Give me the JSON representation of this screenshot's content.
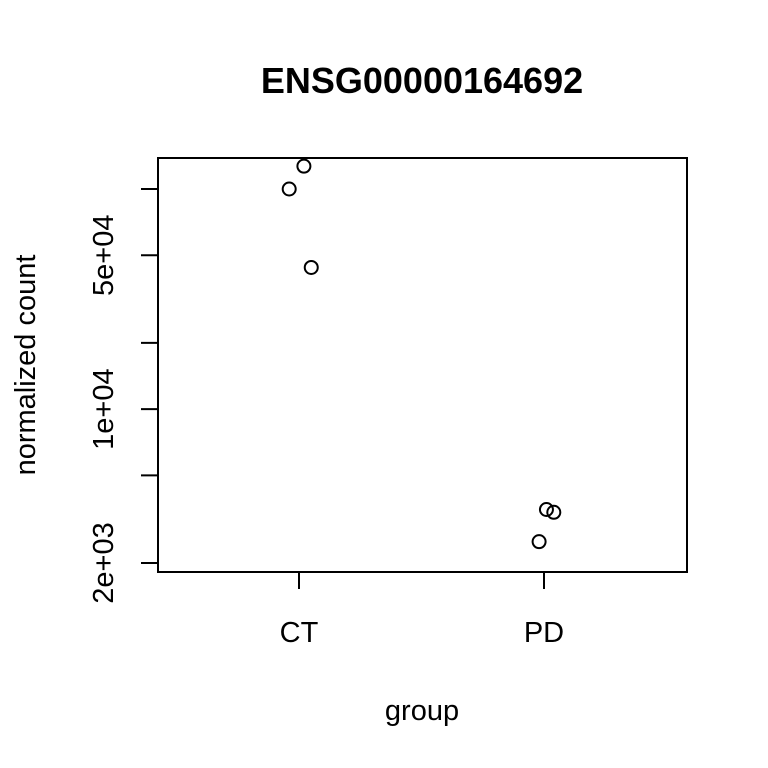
{
  "chart_data": {
    "type": "scatter",
    "title": "ENSG00000164692",
    "xlabel": "group",
    "ylabel": "normalized count",
    "categories": [
      "CT",
      "PD"
    ],
    "y_scale": "log",
    "y_ticks": [
      {
        "value": 2000,
        "label": "2e+03"
      },
      {
        "value": 5000,
        "label": ""
      },
      {
        "value": 10000,
        "label": "1e+04"
      },
      {
        "value": 20000,
        "label": ""
      },
      {
        "value": 50000,
        "label": "5e+04"
      },
      {
        "value": 100000,
        "label": ""
      }
    ],
    "points": [
      {
        "group": "CT",
        "jitter": 0.02,
        "y": 127000
      },
      {
        "group": "CT",
        "jitter": -0.04,
        "y": 100000
      },
      {
        "group": "CT",
        "jitter": 0.05,
        "y": 44000
      },
      {
        "group": "PD",
        "jitter": 0.01,
        "y": 3500
      },
      {
        "group": "PD",
        "jitter": 0.04,
        "y": 3400
      },
      {
        "group": "PD",
        "jitter": -0.02,
        "y": 2500
      }
    ]
  }
}
